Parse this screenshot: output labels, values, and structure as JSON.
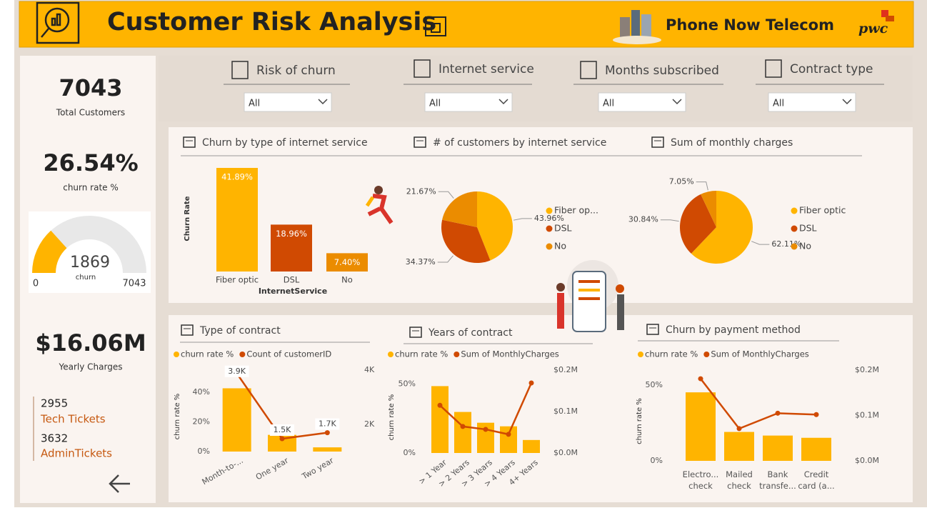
{
  "header": {
    "title": "Customer Risk Analysis",
    "company": "Phone Now Telecom",
    "logo": "pwc"
  },
  "filters": [
    {
      "label": "Risk of churn",
      "value": "All"
    },
    {
      "label": "Internet service",
      "value": "All"
    },
    {
      "label": "Months subscribed",
      "value": "All"
    },
    {
      "label": "Contract type",
      "value": "All"
    }
  ],
  "kpis": [
    {
      "value": "7043",
      "label": "Total Customers"
    },
    {
      "value": "26.54%",
      "label": "churn rate %"
    },
    {
      "value": "$16.06M",
      "label": "Yearly Charges"
    }
  ],
  "gauge": {
    "value": 1869,
    "label": "churn",
    "min": 0,
    "max": 7043
  },
  "tickets": [
    {
      "value": 2955,
      "label": "Tech Tickets"
    },
    {
      "value": 3632,
      "label": "AdminTickets"
    }
  ],
  "chart_data": [
    {
      "type": "bar",
      "title": "Churn by type of internet service",
      "x_label": "InternetService",
      "y_label": "Churn Rate",
      "categories": [
        "Fiber optic",
        "DSL",
        "No"
      ],
      "values": [
        41.89,
        18.96,
        7.4
      ],
      "value_labels": [
        "41.89%",
        "18.96%",
        "7.40%"
      ],
      "colors": [
        "#ffb400",
        "#d04a02",
        "#eb8c00"
      ]
    },
    {
      "type": "pie",
      "title": "# of customers by internet service",
      "categories": [
        "Fiber op...",
        "DSL",
        "No"
      ],
      "values": [
        43.96,
        34.37,
        21.67
      ],
      "value_labels": [
        "43.96%",
        "34.37%",
        "21.67%"
      ],
      "colors": [
        "#ffb400",
        "#d04a02",
        "#eb8c00"
      ]
    },
    {
      "type": "pie",
      "title": "Sum of monthly charges",
      "categories": [
        "Fiber optic",
        "DSL",
        "No"
      ],
      "values": [
        62.11,
        30.84,
        7.05
      ],
      "value_labels": [
        "62.11%",
        "30.84%",
        "7.05%"
      ],
      "colors": [
        "#ffb400",
        "#d04a02",
        "#eb8c00"
      ]
    },
    {
      "type": "combo",
      "title": "Type of contract",
      "y_label": "churn rate %",
      "categories": [
        "Month-to-...",
        "One year",
        "Two year"
      ],
      "series": [
        {
          "name": "churn rate %",
          "type": "bar",
          "color": "#ffb400",
          "values": [
            42.71,
            11.27,
            2.83
          ]
        },
        {
          "name": "Count of customerID",
          "type": "line",
          "axis": "y2",
          "color": "#d04a02",
          "values": [
            3875,
            1473,
            1695
          ],
          "value_labels": [
            "3.9K",
            "1.5K",
            "1.7K"
          ]
        }
      ],
      "ylim": [
        0,
        55
      ],
      "yticks": [
        {
          "value": 0,
          "label": "0%"
        },
        {
          "value": 20,
          "label": "20%"
        },
        {
          "value": 40,
          "label": "40%"
        }
      ],
      "y2lim": [
        1000,
        4000
      ],
      "y2ticks": [
        {
          "value": 2000,
          "label": "2K"
        },
        {
          "value": 4000,
          "label": "4K"
        }
      ]
    },
    {
      "type": "combo",
      "title": "Years of contract",
      "y_label": "churn rate %",
      "categories": [
        "> 1 Year",
        "> 2 Years",
        "> 3 Years",
        "> 4 Years",
        "4+ Years"
      ],
      "series": [
        {
          "name": "churn rate %",
          "type": "bar",
          "color": "#ffb400",
          "values": [
            48.4,
            29.7,
            21.9,
            19.3,
            9.4
          ]
        },
        {
          "name": "Sum of MonthlyCharges",
          "type": "line",
          "axis": "y2",
          "color": "#d04a02",
          "values": [
            115000,
            64000,
            57000,
            45000,
            169000
          ]
        }
      ],
      "ylim": [
        0,
        60
      ],
      "yticks": [
        {
          "value": 0,
          "label": "0%"
        },
        {
          "value": 50,
          "label": "50%"
        }
      ],
      "y2lim": [
        0,
        200000
      ],
      "y2ticks": [
        {
          "value": 0,
          "label": "$0.0M"
        },
        {
          "value": 100000,
          "label": "$0.1M"
        },
        {
          "value": 200000,
          "label": "$0.2M"
        }
      ]
    },
    {
      "type": "combo",
      "title": "Churn by payment method",
      "y_label": "churn rate %",
      "categories": [
        "Electro... check",
        "Mailed check",
        "Bank transfe...",
        "Credit card (a..."
      ],
      "series": [
        {
          "name": "churn rate %",
          "type": "bar",
          "color": "#ffb400",
          "values": [
            45.29,
            19.11,
            16.71,
            15.24
          ]
        },
        {
          "name": "Sum of MonthlyCharges",
          "type": "line",
          "axis": "y2",
          "color": "#d04a02",
          "values": [
            181000,
            71000,
            105000,
            102000
          ]
        }
      ],
      "ylim": [
        0,
        60
      ],
      "yticks": [
        {
          "value": 0,
          "label": "0%"
        },
        {
          "value": 50,
          "label": "50%"
        }
      ],
      "y2lim": [
        0,
        200000
      ],
      "y2ticks": [
        {
          "value": 0,
          "label": "$0.0M"
        },
        {
          "value": 100000,
          "label": "$0.1M"
        },
        {
          "value": 200000,
          "label": "$0.2M"
        }
      ]
    }
  ]
}
